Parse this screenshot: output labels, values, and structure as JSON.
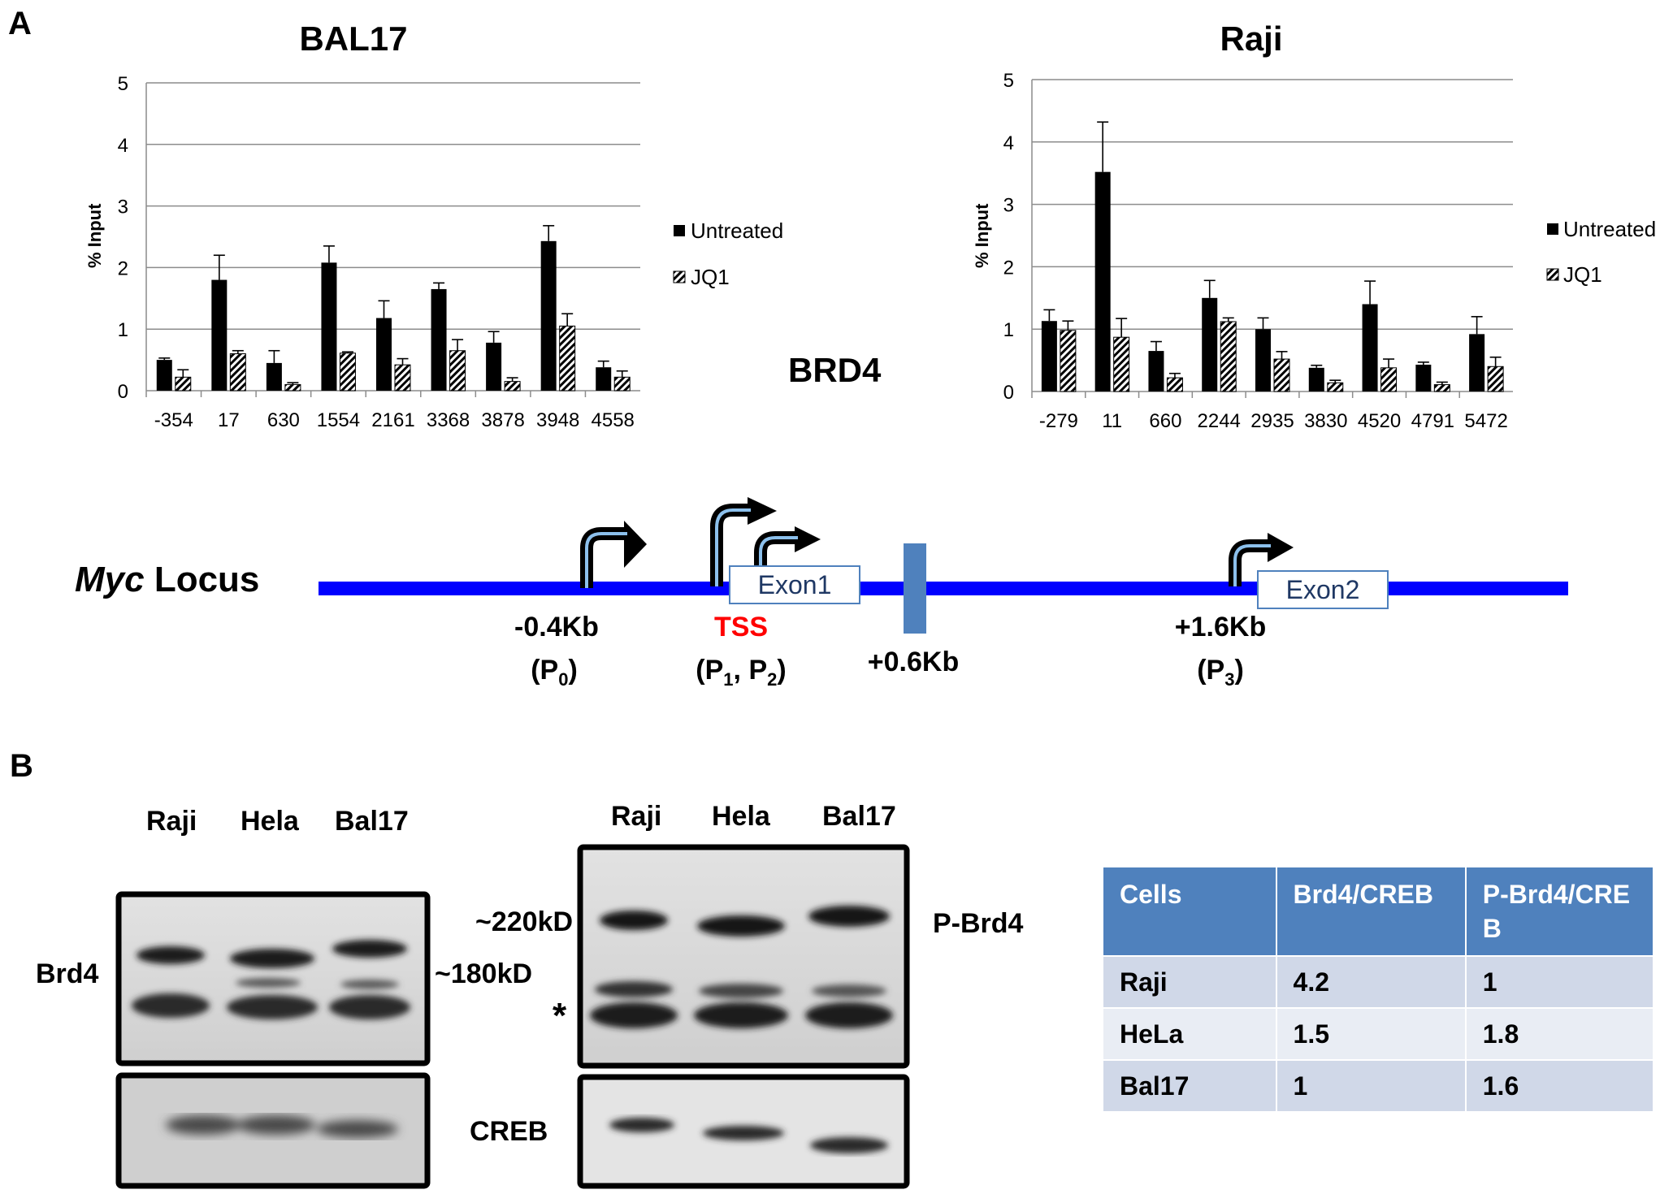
{
  "panels": {
    "a": "A",
    "b": "B"
  },
  "chart_data": [
    {
      "type": "bar",
      "title": "BAL17",
      "ylabel": "% Input",
      "xlabel": "",
      "ylim": [
        0,
        5
      ],
      "yticks": [
        0,
        1,
        2,
        3,
        4,
        5
      ],
      "grid": true,
      "legend_position": "right",
      "categories": [
        "-354",
        "17",
        "630",
        "1554",
        "2161",
        "3368",
        "3878",
        "3948",
        "4558"
      ],
      "series": [
        {
          "name": "Untreated",
          "values": [
            0.5,
            1.8,
            0.45,
            2.08,
            1.18,
            1.65,
            0.78,
            2.43,
            0.38
          ],
          "errors": [
            0.03,
            0.4,
            0.2,
            0.27,
            0.28,
            0.1,
            0.18,
            0.25,
            0.1
          ]
        },
        {
          "name": "JQ1",
          "values": [
            0.22,
            0.6,
            0.1,
            0.61,
            0.42,
            0.65,
            0.15,
            1.05,
            0.22
          ],
          "errors": [
            0.12,
            0.05,
            0.03,
            0.02,
            0.1,
            0.18,
            0.06,
            0.2,
            0.1
          ]
        }
      ]
    },
    {
      "type": "bar",
      "title": "Raji",
      "ylabel": "% Input",
      "xlabel": "",
      "ylim": [
        0,
        5
      ],
      "yticks": [
        0,
        1,
        2,
        3,
        4,
        5
      ],
      "grid": true,
      "legend_position": "right",
      "categories": [
        "-279",
        "11",
        "660",
        "2244",
        "2935",
        "3830",
        "4520",
        "4791",
        "5472"
      ],
      "series": [
        {
          "name": "Untreated",
          "values": [
            1.13,
            3.52,
            0.65,
            1.5,
            1.0,
            0.38,
            1.4,
            0.43,
            0.92
          ],
          "errors": [
            0.18,
            0.8,
            0.15,
            0.28,
            0.18,
            0.04,
            0.37,
            0.04,
            0.28
          ]
        },
        {
          "name": "JQ1",
          "values": [
            0.98,
            0.87,
            0.22,
            1.12,
            0.52,
            0.14,
            0.38,
            0.11,
            0.4
          ],
          "errors": [
            0.15,
            0.3,
            0.07,
            0.06,
            0.12,
            0.04,
            0.14,
            0.04,
            0.15
          ]
        }
      ]
    }
  ],
  "brd4_label": "BRD4",
  "locus": {
    "title_italic": "Myc",
    "title_rest": " Locus",
    "exon1": "Exon1",
    "exon2": "Exon2",
    "p0_pos": "-0.4Kb",
    "p0_name": "(P",
    "p0_sub": "0",
    "tss": "TSS",
    "p12_a": "(P",
    "p12_sub1": "1",
    "p12_mid": ", P",
    "p12_sub2": "2",
    "close_paren": ")",
    "plus06": "+0.6Kb",
    "p3_pos": "+1.6Kb",
    "p3_name": "(P",
    "p3_sub": "3",
    "line_color": "#0000ff",
    "block_color": "#4f81bd",
    "tss_color": "#ff0000"
  },
  "blots": {
    "left_lanes": [
      "Raji",
      "Hela",
      "Bal17"
    ],
    "right_lanes": [
      "Raji",
      "Hela",
      "Bal17"
    ],
    "brd4": "Brd4",
    "kd180": "~180kD",
    "kd220": "~220kD",
    "star": "*",
    "pbrd4": "P-Brd4",
    "creb": "CREB"
  },
  "table": {
    "headers": [
      "Cells",
      "Brd4/CREB",
      "P-Brd4/CREB"
    ],
    "rows": [
      [
        "Raji",
        "4.2",
        "1"
      ],
      [
        "HeLa",
        "1.5",
        "1.8"
      ],
      [
        "Bal17",
        "1",
        "1.6"
      ]
    ]
  }
}
